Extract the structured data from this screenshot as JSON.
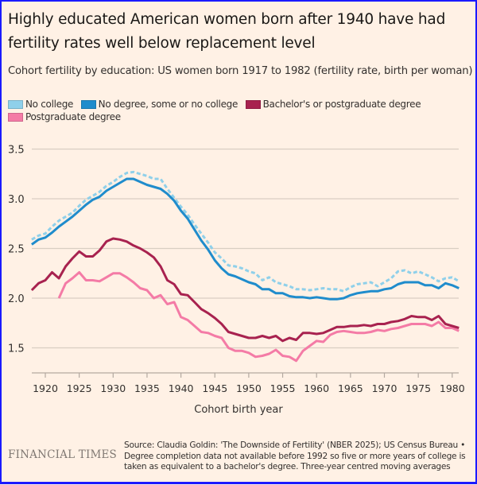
{
  "header": {
    "title": "Highly educated American women born after 1940 have had fertility rates well below replacement level",
    "subtitle": "Cohort fertility by education: US women born 1917 to 1982 (fertility rate, birth per woman)"
  },
  "footer": {
    "logo": "FINANCIAL TIMES",
    "source": "Source: Claudia Goldin: 'The Downside of Fertility' (NBER 2025); US Census Bureau • Degree completion data not available before 1992 so five or more years of college is taken as equivalent to a bachelor's degree. Three-year centred moving averages"
  },
  "chart_data": {
    "type": "line",
    "title": "Highly educated American women born after 1940 have had fertility rates well below replacement level",
    "subtitle": "Cohort fertility by education: US women born 1917 to 1982 (fertility rate, birth per woman)",
    "xlabel": "Cohort birth year",
    "ylabel": "",
    "xlim": [
      1918,
      1981
    ],
    "ylim": [
      1.25,
      3.5
    ],
    "xticks": [
      1920,
      1925,
      1930,
      1935,
      1940,
      1945,
      1950,
      1955,
      1960,
      1965,
      1970,
      1975,
      1980
    ],
    "yticks": [
      "1.5",
      "2.0",
      "2.5",
      "3.0",
      "3.5"
    ],
    "ytick_values": [
      1.5,
      2.0,
      2.5,
      3.0,
      3.5
    ],
    "grid": "horizontal",
    "legend_position": "top-left",
    "series": [
      {
        "name": "No college",
        "color": "#8fd0ea",
        "style": "dashed",
        "start_year": 1918,
        "values": [
          2.59,
          2.63,
          2.65,
          2.72,
          2.78,
          2.82,
          2.86,
          2.93,
          2.99,
          3.03,
          3.07,
          3.13,
          3.17,
          3.22,
          3.26,
          3.27,
          3.25,
          3.23,
          3.2,
          3.2,
          3.1,
          3.01,
          2.92,
          2.84,
          2.74,
          2.65,
          2.56,
          2.46,
          2.4,
          2.33,
          2.32,
          2.3,
          2.27,
          2.25,
          2.18,
          2.21,
          2.16,
          2.14,
          2.12,
          2.09,
          2.09,
          2.08,
          2.09,
          2.1,
          2.09,
          2.09,
          2.07,
          2.11,
          2.14,
          2.15,
          2.16,
          2.12,
          2.16,
          2.2,
          2.27,
          2.28,
          2.25,
          2.27,
          2.24,
          2.21,
          2.17,
          2.2,
          2.21,
          2.17
        ]
      },
      {
        "name": "No degree, some or no college",
        "color": "#1f8ccc",
        "style": "solid",
        "start_year": 1918,
        "values": [
          2.54,
          2.59,
          2.61,
          2.66,
          2.72,
          2.77,
          2.82,
          2.88,
          2.94,
          2.99,
          3.02,
          3.08,
          3.12,
          3.16,
          3.2,
          3.2,
          3.17,
          3.14,
          3.12,
          3.1,
          3.05,
          2.98,
          2.88,
          2.8,
          2.69,
          2.58,
          2.49,
          2.38,
          2.3,
          2.24,
          2.22,
          2.19,
          2.16,
          2.14,
          2.09,
          2.09,
          2.05,
          2.05,
          2.02,
          2.01,
          2.01,
          2.0,
          2.01,
          2.0,
          1.99,
          1.99,
          2.0,
          2.03,
          2.05,
          2.06,
          2.07,
          2.07,
          2.09,
          2.1,
          2.14,
          2.16,
          2.16,
          2.16,
          2.13,
          2.13,
          2.1,
          2.15,
          2.13,
          2.1
        ]
      },
      {
        "name": "Bachelor's or postgraduate degree",
        "color": "#a8224f",
        "style": "solid",
        "start_year": 1918,
        "values": [
          2.08,
          2.15,
          2.18,
          2.26,
          2.2,
          2.32,
          2.4,
          2.47,
          2.42,
          2.42,
          2.48,
          2.57,
          2.6,
          2.59,
          2.57,
          2.53,
          2.5,
          2.46,
          2.41,
          2.32,
          2.18,
          2.14,
          2.04,
          2.03,
          1.96,
          1.89,
          1.85,
          1.8,
          1.74,
          1.66,
          1.64,
          1.62,
          1.6,
          1.6,
          1.62,
          1.6,
          1.62,
          1.57,
          1.6,
          1.58,
          1.65,
          1.65,
          1.64,
          1.65,
          1.68,
          1.71,
          1.71,
          1.72,
          1.72,
          1.73,
          1.72,
          1.74,
          1.74,
          1.76,
          1.77,
          1.79,
          1.82,
          1.81,
          1.81,
          1.78,
          1.82,
          1.74,
          1.72,
          1.7
        ]
      },
      {
        "name": "Postgraduate degree",
        "color": "#f47ba6",
        "style": "solid",
        "start_year": 1922,
        "values": [
          2.0,
          2.15,
          2.2,
          2.26,
          2.18,
          2.18,
          2.17,
          2.21,
          2.25,
          2.25,
          2.21,
          2.16,
          2.1,
          2.08,
          2.0,
          2.03,
          1.94,
          1.96,
          1.81,
          1.78,
          1.72,
          1.66,
          1.65,
          1.62,
          1.6,
          1.5,
          1.47,
          1.47,
          1.45,
          1.41,
          1.42,
          1.44,
          1.48,
          1.42,
          1.41,
          1.37,
          1.47,
          1.52,
          1.57,
          1.56,
          1.63,
          1.66,
          1.67,
          1.66,
          1.65,
          1.65,
          1.66,
          1.68,
          1.67,
          1.69,
          1.7,
          1.72,
          1.74,
          1.74,
          1.74,
          1.72,
          1.76,
          1.7,
          1.7,
          1.67
        ]
      }
    ]
  }
}
